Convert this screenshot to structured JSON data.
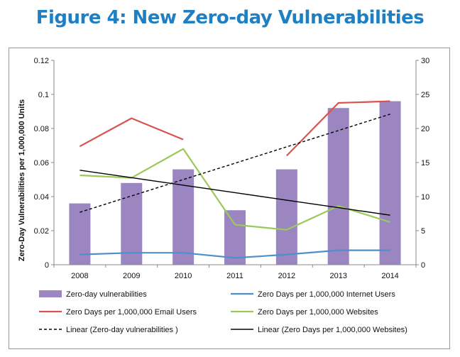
{
  "figure_title": "Figure 4: New Zero-day Vulnerabilities",
  "chart_data": {
    "type": "bar",
    "title": "",
    "xlabel": "",
    "ylabel": "Zero-Day Vulnerabilities per 1,000,000 Units",
    "categories": [
      "2008",
      "2009",
      "2010",
      "2011",
      "2012",
      "2013",
      "2014"
    ],
    "ylim": [
      0,
      0.12
    ],
    "y_ticks": [
      "0",
      "0.02",
      "0.04",
      "0.06",
      "0.08",
      "0.1",
      "0.12"
    ],
    "y2lim": [
      0,
      30
    ],
    "y2_ticks": [
      "0",
      "5",
      "10",
      "15",
      "20",
      "25",
      "30"
    ],
    "grid": false,
    "legend_position": "bottom",
    "colors": {
      "bar": "#9b86c2",
      "internet": "#4f8fcb",
      "email": "#d9534f",
      "websites": "#9cc85a",
      "trend_zero_day": "#000000",
      "trend_websites": "#000000"
    },
    "series": [
      {
        "name": "Zero-day vulnerabilities",
        "type": "bar",
        "axis": "right",
        "values": [
          9,
          12,
          14,
          8,
          14,
          23,
          24
        ]
      },
      {
        "name": "Zero Days per 1,000,000 Internet Users",
        "type": "line",
        "axis": "left",
        "values": [
          0.006,
          0.007,
          0.007,
          0.004,
          0.006,
          0.0085,
          0.0085
        ]
      },
      {
        "name": "Zero Days per 1,000,000 Email Users",
        "type": "line",
        "axis": "left",
        "values": [
          0.0695,
          0.086,
          0.0735,
          null,
          0.064,
          0.095,
          0.096
        ]
      },
      {
        "name": "Zero Days per 1,000,000 Websites",
        "type": "line",
        "axis": "left",
        "values": [
          0.0525,
          0.051,
          0.068,
          0.0235,
          0.0205,
          0.0345,
          0.025
        ]
      },
      {
        "name": "Linear (Zero-day vulnerabilities )",
        "type": "trend",
        "axis": "right",
        "values": [
          7.7,
          10.1,
          12.5,
          14.9,
          17.3,
          19.7,
          22.1
        ]
      },
      {
        "name": "Linear (Zero Days per 1,000,000 Websites)",
        "type": "trend",
        "axis": "left",
        "values": [
          0.0555,
          0.0511,
          0.0467,
          0.0423,
          0.0379,
          0.0335,
          0.0291
        ]
      }
    ]
  }
}
